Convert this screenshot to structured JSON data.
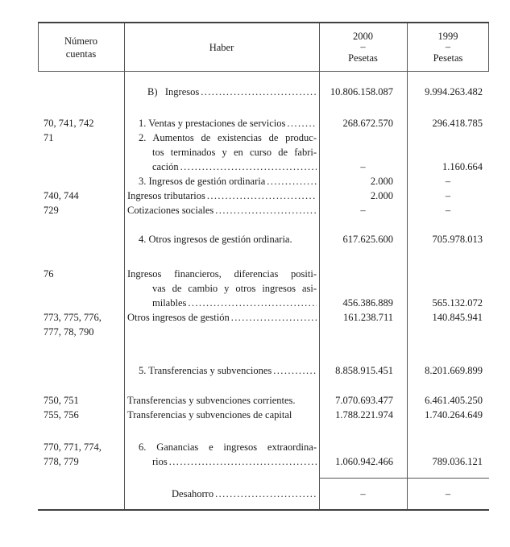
{
  "header": {
    "col1": [
      "Número",
      "cuentas"
    ],
    "col2": "Haber",
    "col3": {
      "year": "2000",
      "dash": "–",
      "unit": "Pesetas"
    },
    "col4": {
      "year": "1999",
      "dash": "–",
      "unit": "Pesetas"
    }
  },
  "rows": [
    {
      "acct": "",
      "label": "B)   Ingresos",
      "v2000": "10.806.158.087",
      "v1999": "9.994.263.482"
    },
    {
      "acct": "70, 741, 742",
      "label": "1. Ventas y prestaciones de servicios",
      "v2000": "268.672.570",
      "v1999": "296.418.785"
    },
    {
      "acct": "71",
      "label": "2. Aumentos de existencias de produc-"
    },
    {
      "acct": "",
      "label": "tos terminados y en curso de fabri-"
    },
    {
      "acct": "",
      "label": "cación",
      "v2000": "–",
      "v1999": "1.160.664"
    },
    {
      "acct": "",
      "label": "3. Ingresos de gestión ordinaria",
      "v2000": "2.000",
      "v1999": "–"
    },
    {
      "acct": "740, 744",
      "label": "Ingresos tributarios",
      "v2000": "2.000",
      "v1999": "–"
    },
    {
      "acct": "729",
      "label": "Cotizaciones sociales",
      "v2000": "–",
      "v1999": "–"
    },
    {
      "acct": "",
      "label": "4. Otros ingresos de gestión ordinaria.",
      "v2000": "617.625.600",
      "v1999": "705.978.013"
    },
    {
      "acct": "76",
      "label": "Ingresos financieros, diferencias positi-"
    },
    {
      "acct": "",
      "label": "vas de cambio y otros ingresos asi-"
    },
    {
      "acct": "",
      "label": "milables",
      "v2000": "456.386.889",
      "v1999": "565.132.072"
    },
    {
      "acct": "773, 775, 776,",
      "label": "Otros ingresos de gestión",
      "v2000": "161.238.711",
      "v1999": "140.845.941"
    },
    {
      "acct": "777, 78, 790",
      "label": ""
    },
    {
      "acct": "",
      "label": "5. Transferencias y subvenciones",
      "v2000": "8.858.915.451",
      "v1999": "8.201.669.899"
    },
    {
      "acct": "750, 751",
      "label": "Transferencias y subvenciones corrientes.",
      "v2000": "7.070.693.477",
      "v1999": "6.461.405.250"
    },
    {
      "acct": "755, 756",
      "label": "Transferencias y subvenciones de capital",
      "v2000": "1.788.221.974",
      "v1999": "1.740.264.649"
    },
    {
      "acct": "770, 771, 774,",
      "label": "6. Ganancias e ingresos extraordina-"
    },
    {
      "acct": "778, 779",
      "label": "rios",
      "v2000": "1.060.942.466",
      "v1999": "789.036.121"
    },
    {
      "acct": "",
      "label": "Desahorro",
      "v2000": "–",
      "v1999": "–"
    }
  ]
}
